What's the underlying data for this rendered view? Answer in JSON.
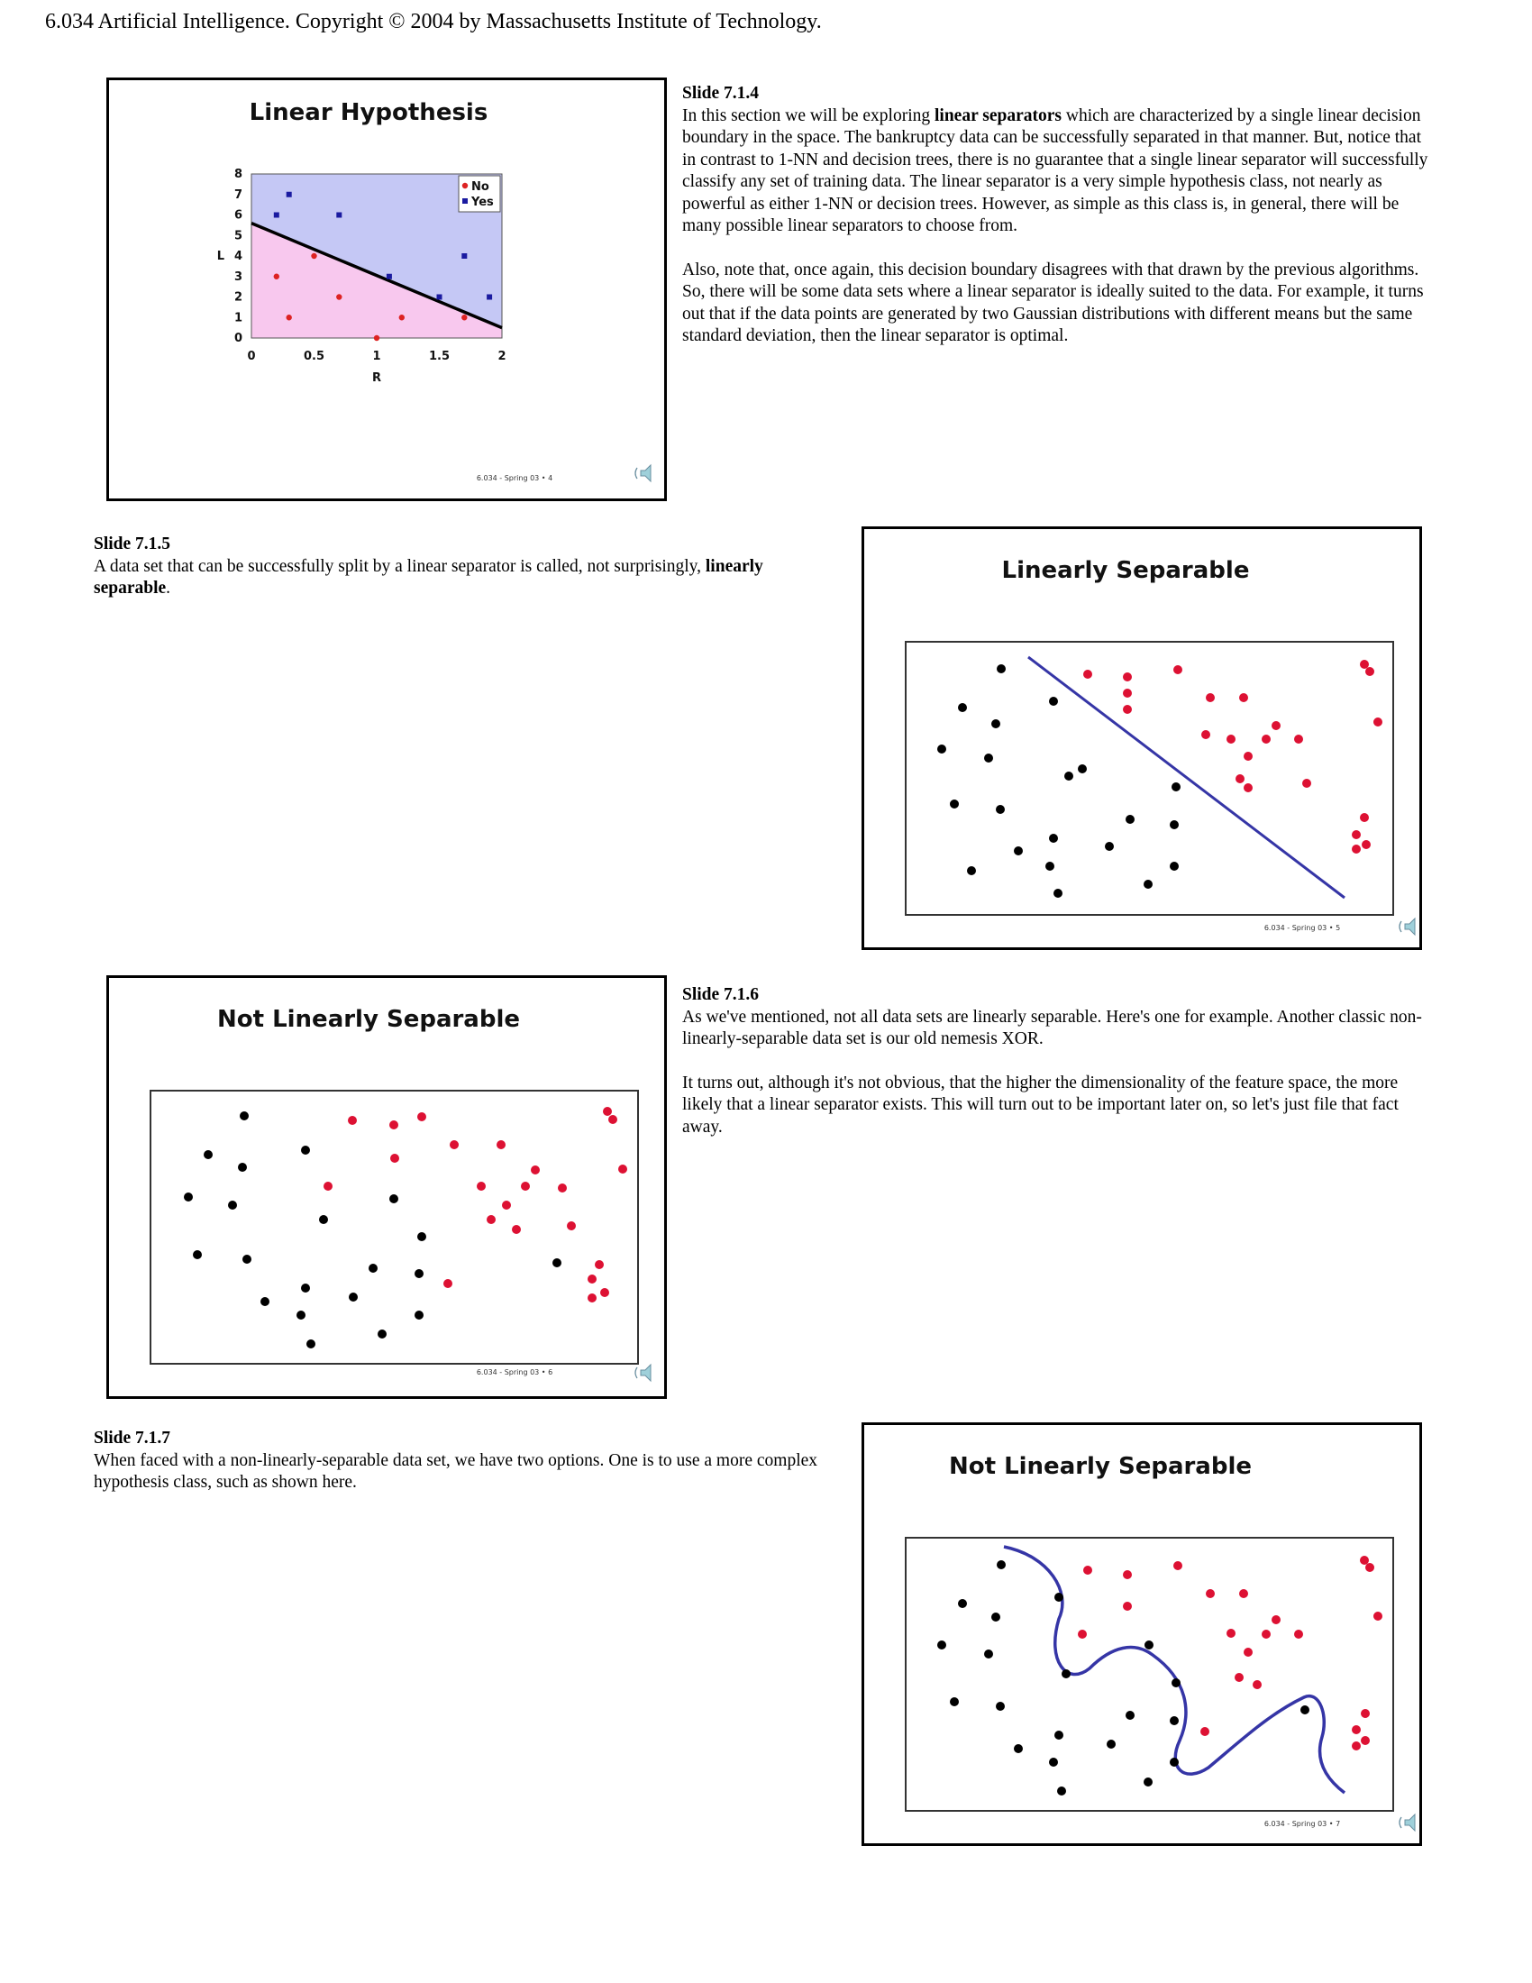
{
  "header": "6.034 Artificial Intelligence. Copyright © 2004 by Massachusetts Institute of Technology.",
  "slides": [
    {
      "id": "7.1.4",
      "heading": "Slide 7.1.4",
      "paragraphs": [
        [
          {
            "t": "In this section we will be exploring "
          },
          {
            "t": "linear separators",
            "b": true
          },
          {
            "t": " which are characterized by a single linear decision boundary in the space. The bankruptcy data can be successfully separated in that manner. But, notice that in contrast to 1-NN and decision trees, there is no guarantee that a single linear separator will successfully classify any set of training data. The linear separator is a very simple hypothesis class, not nearly as powerful as either 1-NN or decision trees. However, as simple as this class is, in general, there will be many possible linear separators to choose from."
          }
        ],
        [
          {
            "t": "Also, note that, once again, this decision boundary disagrees with that drawn by the previous algorithms. So, there will be some data sets where a linear separator is ideally suited to the data. For example, it turns out that if the data points are generated by two Gaussian distributions with different means but the same standard deviation, then the linear separator is optimal."
          }
        ]
      ],
      "image": {
        "title": "Linear Hypothesis",
        "footer": "6.034 - Spring 03 • 4",
        "chart_data": {
          "type": "scatter",
          "xlabel": "R",
          "ylabel": "L",
          "xlim": [
            0,
            2
          ],
          "ylim": [
            0,
            8
          ],
          "xticks": [
            "0",
            "0.5",
            "1",
            "1.5",
            "2"
          ],
          "yticks": [
            "0",
            "1",
            "2",
            "3",
            "4",
            "5",
            "6",
            "7",
            "8"
          ],
          "legend_position": "top-right",
          "series": [
            {
              "name": "No",
              "color": "#dd2222",
              "marker": "circle",
              "points": [
                [
                  0.2,
                  3
                ],
                [
                  0.3,
                  1
                ],
                [
                  0.5,
                  4
                ],
                [
                  0.7,
                  2
                ],
                [
                  1.0,
                  0
                ],
                [
                  1.2,
                  1
                ],
                [
                  1.7,
                  1
                ]
              ]
            },
            {
              "name": "Yes",
              "color": "#1a1aa0",
              "marker": "square",
              "points": [
                [
                  0.2,
                  6
                ],
                [
                  0.3,
                  7
                ],
                [
                  0.7,
                  6
                ],
                [
                  1.1,
                  3
                ],
                [
                  1.5,
                  2
                ],
                [
                  1.7,
                  4
                ],
                [
                  1.9,
                  2
                ]
              ]
            }
          ],
          "separator_line": [
            [
              0,
              5.6
            ],
            [
              2,
              0.5
            ]
          ],
          "region_colors": {
            "upper": "#c5c8f5",
            "lower": "#f8c8ee"
          }
        }
      }
    },
    {
      "id": "7.1.5",
      "heading": "Slide 7.1.5",
      "paragraphs": [
        [
          {
            "t": "A data set that can be successfully split by a linear separator is called, not surprisingly, "
          },
          {
            "t": "linearly separable",
            "b": true
          },
          {
            "t": "."
          }
        ]
      ],
      "image": {
        "title": "Linearly Separable",
        "footer": "6.034 - Spring 03 • 5"
      }
    },
    {
      "id": "7.1.6",
      "heading": "Slide 7.1.6",
      "paragraphs": [
        [
          {
            "t": "As we've mentioned, not all data sets are linearly separable. Here's one for example. Another classic non-linearly-separable data set is our old nemesis XOR."
          }
        ],
        [
          {
            "t": "It turns out, although it's not obvious, that the higher the dimensionality of the feature space, the more likely that a linear separator exists. This will turn out to be important later on, so let's just file that fact away."
          }
        ]
      ],
      "image": {
        "title": "Not Linearly Separable",
        "footer": "6.034 - Spring 03 • 6"
      }
    },
    {
      "id": "7.1.7",
      "heading": "Slide 7.1.7",
      "paragraphs": [
        [
          {
            "t": "When faced with a non-linearly-separable data set, we have two options. One is to use a more complex hypothesis class, such as shown here."
          }
        ]
      ],
      "image": {
        "title": "Not Linearly Separable",
        "footer": "6.034 - Spring 03 • 7"
      }
    }
  ]
}
